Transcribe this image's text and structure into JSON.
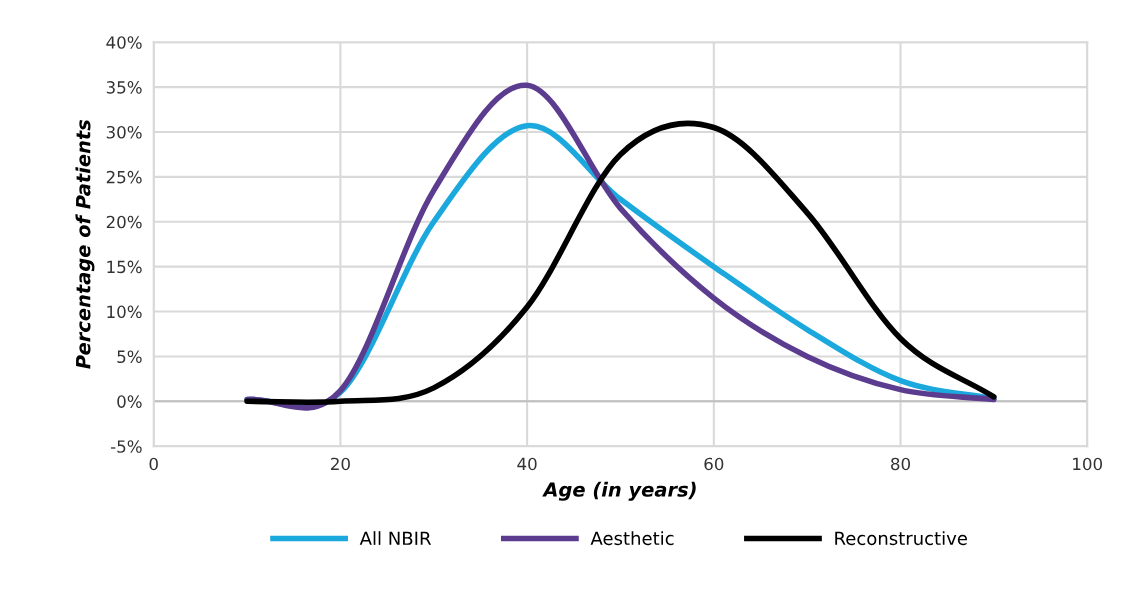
{
  "chart_data": {
    "type": "line",
    "xlabel": "Age (in years)",
    "ylabel": "Percentage of Patients",
    "x": [
      10,
      20,
      30,
      40,
      50,
      60,
      70,
      80,
      90
    ],
    "series": [
      {
        "name": "All NBIR",
        "color": "#1ba8dd",
        "values": [
          0.2,
          1,
          20,
          30.7,
          22.5,
          15,
          8,
          2.3,
          0.3
        ]
      },
      {
        "name": "Aesthetic",
        "color": "#5c3c8e",
        "values": [
          0.2,
          1.2,
          23.5,
          35.2,
          21.5,
          11.5,
          5,
          1.3,
          0.2
        ]
      },
      {
        "name": "Reconstructive",
        "color": "#000000",
        "values": [
          0,
          0,
          1.5,
          10.5,
          27.5,
          30.5,
          21,
          7,
          0.5
        ]
      }
    ],
    "xlim": [
      0,
      100
    ],
    "xticks": [
      0,
      20,
      40,
      60,
      80,
      100
    ],
    "ylim": [
      -5,
      40
    ],
    "yticks": [
      {
        "value": -5,
        "label": "-5%"
      },
      {
        "value": 0,
        "label": "0%"
      },
      {
        "value": 5,
        "label": "5%"
      },
      {
        "value": 10,
        "label": "10%"
      },
      {
        "value": 15,
        "label": "15%"
      },
      {
        "value": 20,
        "label": "20%"
      },
      {
        "value": 25,
        "label": "25%"
      },
      {
        "value": 30,
        "label": "30%"
      },
      {
        "value": 35,
        "label": "35%"
      },
      {
        "value": 40,
        "label": "40%"
      }
    ],
    "grid": true,
    "legend": "bottom",
    "marker": "none",
    "line_style": "solid"
  }
}
